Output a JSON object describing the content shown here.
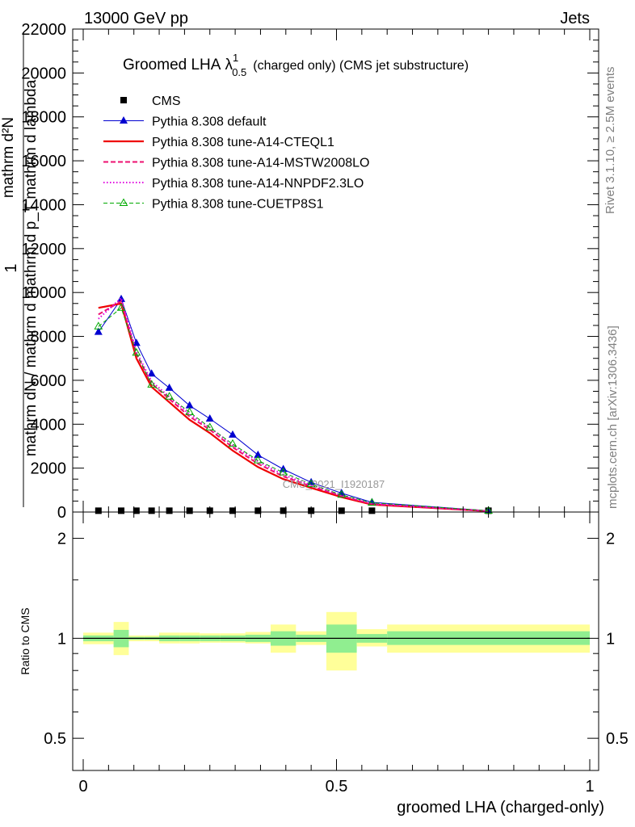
{
  "header": {
    "energy_label": "13000 GeV pp",
    "process_label": "Jets"
  },
  "side_labels": {
    "rivet": "Rivet 3.1.10, ≥ 2.5M events",
    "mcplots": "mcplots.cern.ch [arXiv:1306.3436]"
  },
  "watermark": "CMS_2021_I1920187",
  "ytitle_main": {
    "one": "1",
    "numerator": "mathrm d²N",
    "denominator": "mathrm dN / mathrm d mathrm d p_T mathrm d lambda"
  },
  "chart_data": [
    {
      "type": "line",
      "panel": "main",
      "title_main": "Groomed LHA",
      "title_symbol": "λ",
      "title_sup": "1",
      "title_sub": "0.5",
      "title_rest": "(charged only) (CMS jet substructure)",
      "xlim": [
        0,
        1
      ],
      "ylim": [
        0,
        22000
      ],
      "yticks": [
        0,
        2000,
        4000,
        6000,
        8000,
        10000,
        12000,
        14000,
        16000,
        18000,
        20000,
        22000
      ],
      "ytick_labels": [
        "0",
        "2000",
        "4000",
        "6000",
        "8000",
        "10000",
        "12000",
        "14000",
        "16000",
        "18000",
        "20000",
        "22000"
      ],
      "legend_position": "top-left",
      "series": [
        {
          "name": "CMS",
          "color": "#000000",
          "marker": "square",
          "x": [
            0.03,
            0.075,
            0.105,
            0.135,
            0.17,
            0.21,
            0.25,
            0.295,
            0.345,
            0.395,
            0.45,
            0.51,
            0.57,
            0.8
          ],
          "y": [
            60,
            60,
            60,
            60,
            60,
            60,
            60,
            60,
            60,
            60,
            60,
            60,
            60,
            60
          ]
        },
        {
          "name": "Pythia 8.308 default",
          "color": "#0000d0",
          "marker": "triangle-filled",
          "x": [
            0.03,
            0.075,
            0.105,
            0.135,
            0.17,
            0.21,
            0.25,
            0.295,
            0.345,
            0.395,
            0.45,
            0.51,
            0.57,
            0.8
          ],
          "y": [
            8200,
            9700,
            7700,
            6300,
            5650,
            4850,
            4250,
            3520,
            2600,
            1950,
            1350,
            860,
            440,
            60
          ]
        },
        {
          "name": "Pythia 8.308 tune-A14-CTEQL1",
          "color": "#ee0000",
          "marker": "none",
          "x": [
            0.03,
            0.075,
            0.105,
            0.135,
            0.17,
            0.21,
            0.25,
            0.295,
            0.345,
            0.395,
            0.45,
            0.51,
            0.57,
            0.8
          ],
          "y": [
            9300,
            9500,
            7000,
            5700,
            5000,
            4200,
            3600,
            2800,
            2050,
            1500,
            1100,
            680,
            340,
            40
          ]
        },
        {
          "name": "Pythia 8.308 tune-A14-MSTW2008LO",
          "color": "#ee1170",
          "marker": "none",
          "x": [
            0.03,
            0.075,
            0.105,
            0.135,
            0.17,
            0.21,
            0.25,
            0.295,
            0.345,
            0.395,
            0.45,
            0.51,
            0.57,
            0.8
          ],
          "y": [
            9000,
            9600,
            7200,
            5850,
            5150,
            4350,
            3750,
            2950,
            2200,
            1620,
            1170,
            730,
            360,
            45
          ]
        },
        {
          "name": "Pythia 8.308 tune-A14-NNPDF2.3LO",
          "color": "#e000e0",
          "marker": "none",
          "x": [
            0.03,
            0.075,
            0.105,
            0.135,
            0.17,
            0.21,
            0.25,
            0.295,
            0.345,
            0.395,
            0.45,
            0.51,
            0.57,
            0.8
          ],
          "y": [
            8800,
            9750,
            7300,
            5950,
            5250,
            4450,
            3850,
            3050,
            2300,
            1700,
            1220,
            760,
            380,
            45
          ]
        },
        {
          "name": "Pythia 8.308 tune-CUETP8S1",
          "color": "#00aa00",
          "marker": "triangle-open",
          "x": [
            0.03,
            0.075,
            0.105,
            0.135,
            0.17,
            0.21,
            0.25,
            0.295,
            0.345,
            0.395,
            0.45,
            0.51,
            0.57,
            0.8
          ],
          "y": [
            8450,
            9300,
            7250,
            5800,
            5250,
            4550,
            3850,
            3100,
            2350,
            1800,
            1270,
            780,
            420,
            55
          ]
        }
      ]
    },
    {
      "type": "area",
      "panel": "ratio",
      "ylabel": "Ratio to CMS",
      "xlabel": "groomed LHA (charged-only)",
      "xlim": [
        0,
        1
      ],
      "ylim": [
        0.4,
        2.4
      ],
      "log_y": true,
      "yticks": [
        0.5,
        1,
        2
      ],
      "ytick_labels": [
        "0.5",
        "1",
        "2"
      ],
      "xticks": [
        0,
        0.5,
        1
      ],
      "xtick_labels": [
        "0",
        "0.5",
        "1"
      ],
      "reference_line": 1,
      "bands": {
        "stat_color": "#90ee90",
        "total_color": "#ffff99",
        "bins": [
          {
            "x": [
              0.0,
              0.06
            ],
            "inner": [
              0.98,
              1.02
            ],
            "outer": [
              0.96,
              1.04
            ]
          },
          {
            "x": [
              0.06,
              0.09
            ],
            "inner": [
              0.94,
              1.06
            ],
            "outer": [
              0.89,
              1.12
            ]
          },
          {
            "x": [
              0.09,
              0.12
            ],
            "inner": [
              0.99,
              1.01
            ],
            "outer": [
              0.98,
              1.02
            ]
          },
          {
            "x": [
              0.12,
              0.15
            ],
            "inner": [
              0.99,
              1.01
            ],
            "outer": [
              0.98,
              1.02
            ]
          },
          {
            "x": [
              0.15,
              0.19
            ],
            "inner": [
              0.98,
              1.02
            ],
            "outer": [
              0.965,
              1.04
            ]
          },
          {
            "x": [
              0.19,
              0.23
            ],
            "inner": [
              0.98,
              1.02
            ],
            "outer": [
              0.965,
              1.04
            ]
          },
          {
            "x": [
              0.23,
              0.27
            ],
            "inner": [
              0.98,
              1.02
            ],
            "outer": [
              0.97,
              1.035
            ]
          },
          {
            "x": [
              0.27,
              0.32
            ],
            "inner": [
              0.98,
              1.02
            ],
            "outer": [
              0.97,
              1.035
            ]
          },
          {
            "x": [
              0.32,
              0.37
            ],
            "inner": [
              0.975,
              1.025
            ],
            "outer": [
              0.965,
              1.045
            ]
          },
          {
            "x": [
              0.37,
              0.42
            ],
            "inner": [
              0.95,
              1.05
            ],
            "outer": [
              0.905,
              1.1
            ]
          },
          {
            "x": [
              0.42,
              0.48
            ],
            "inner": [
              0.975,
              1.025
            ],
            "outer": [
              0.955,
              1.05
            ]
          },
          {
            "x": [
              0.48,
              0.54
            ],
            "inner": [
              0.905,
              1.1
            ],
            "outer": [
              0.8,
              1.2
            ]
          },
          {
            "x": [
              0.54,
              0.6
            ],
            "inner": [
              0.97,
              1.03
            ],
            "outer": [
              0.945,
              1.065
            ]
          },
          {
            "x": [
              0.6,
              1.0
            ],
            "inner": [
              0.955,
              1.05
            ],
            "outer": [
              0.905,
              1.1
            ]
          }
        ]
      }
    }
  ]
}
